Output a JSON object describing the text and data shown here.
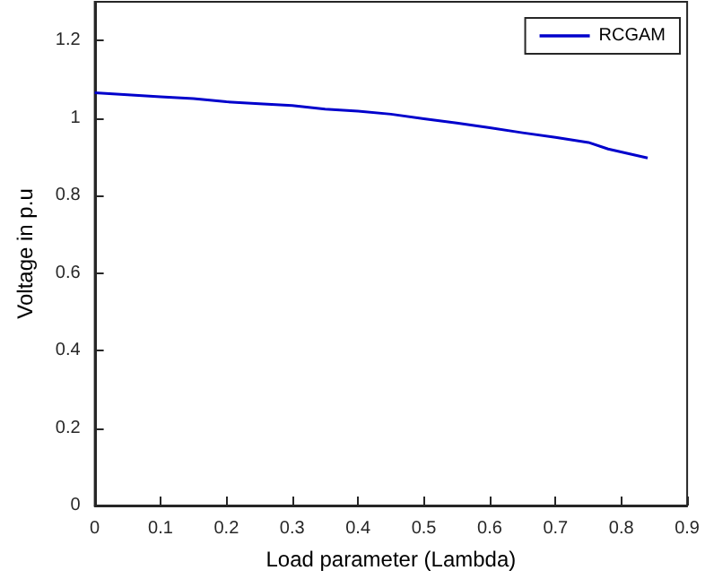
{
  "chart_data": {
    "type": "line",
    "xlabel": "Load parameter (Lambda)",
    "ylabel": "Voltage in p.u",
    "series": [
      {
        "name": "RCGAM",
        "color": "#0000cc",
        "x": [
          0,
          0.05,
          0.1,
          0.15,
          0.2,
          0.25,
          0.3,
          0.35,
          0.4,
          0.45,
          0.5,
          0.55,
          0.6,
          0.65,
          0.7,
          0.75,
          0.78,
          0.84
        ],
        "values": [
          1.065,
          1.06,
          1.055,
          1.05,
          1.042,
          1.037,
          1.032,
          1.023,
          1.018,
          1.01,
          0.998,
          0.987,
          0.975,
          0.962,
          0.95,
          0.937,
          0.92,
          0.897
        ]
      }
    ],
    "xlim": [
      0,
      0.9
    ],
    "xticks": [
      0,
      0.1,
      0.2,
      0.3,
      0.4,
      0.5,
      0.6,
      0.7,
      0.8,
      0.9
    ],
    "ylim": [
      0,
      1.3
    ],
    "yticks": [
      0,
      0.2,
      0.4,
      0.6,
      0.8,
      1,
      1.2
    ],
    "grid": false,
    "legend": "top right",
    "marker": "none",
    "line_style": "solid"
  }
}
